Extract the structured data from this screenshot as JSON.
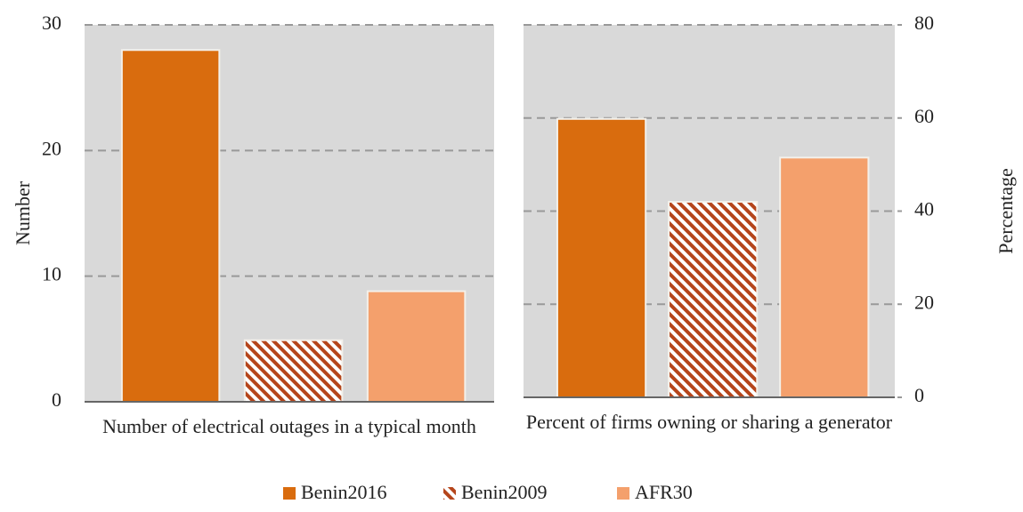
{
  "chart_data": [
    {
      "type": "bar",
      "categories": [
        "Number of electrical outages in a typical month"
      ],
      "ylabel": "Number",
      "ylim": [
        0,
        30
      ],
      "yticks": [
        0,
        10,
        20,
        30
      ],
      "yaxis": "left",
      "grid": true,
      "series": [
        {
          "name": "Benin2016",
          "color": "#d96c0e",
          "values": [
            28
          ]
        },
        {
          "name": "Benin2009",
          "color": "#b5451b",
          "hatch": true,
          "values": [
            4.9
          ]
        },
        {
          "name": "AFR30",
          "color": "#f4a06c",
          "values": [
            8.8
          ]
        }
      ]
    },
    {
      "type": "bar",
      "categories": [
        "Percent of firms owning or sharing a generator"
      ],
      "ylabel": "Percentage",
      "ylim": [
        0,
        80
      ],
      "yticks": [
        0,
        20,
        40,
        60,
        80
      ],
      "yaxis": "right",
      "grid": true,
      "series": [
        {
          "color": "#d96c0e",
          "values": [
            59.8
          ]
        },
        {
          "color": "#b5451b",
          "hatch": true,
          "values": [
            42
          ]
        },
        {
          "color": "#f4a06c",
          "values": [
            51.5
          ]
        }
      ]
    }
  ]
}
